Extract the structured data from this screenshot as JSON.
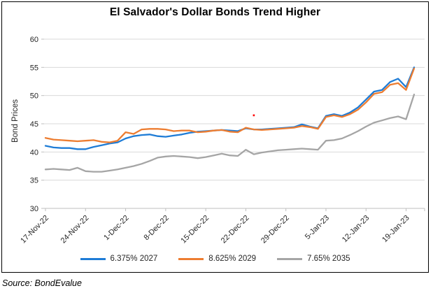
{
  "source_note": "Source: BondEvalue",
  "colors": {
    "grid": "#D9D9D9",
    "axis": "#BFBFBF",
    "tick_text": "#262626",
    "title_text": "#000000",
    "frame_border": "#000000",
    "annotation_dot": "#FF0000"
  },
  "chart_data": {
    "type": "line",
    "title": "El Salvador's Dollar Bonds Trend Higher",
    "xlabel": "",
    "ylabel": "Bond Prices",
    "ylim": [
      30,
      60
    ],
    "y_ticks": [
      30,
      35,
      40,
      45,
      50,
      55,
      60
    ],
    "x_tick_labels": [
      "17-Nov-22",
      "24-Nov-22",
      "1-Dec-22",
      "8-Dec-22",
      "15-Dec-22",
      "22-Dec-22",
      "29-Dec-22",
      "5-Jan-23",
      "12-Jan-23",
      "19-Jan-23"
    ],
    "x_tick_indices": [
      0,
      5,
      10,
      15,
      20,
      25,
      30,
      35,
      40,
      45
    ],
    "n_points": 47,
    "grid": "horizontal",
    "legend_position": "bottom",
    "series": [
      {
        "key": "bond-2027",
        "name": "6.375% 2027",
        "color": "#1E7CD6",
        "values": [
          41.1,
          40.8,
          40.7,
          40.7,
          40.5,
          40.5,
          40.9,
          41.2,
          41.5,
          41.7,
          42.4,
          42.8,
          43.0,
          43.1,
          42.8,
          42.7,
          42.9,
          43.1,
          43.4,
          43.6,
          43.7,
          43.8,
          43.9,
          43.8,
          43.7,
          44.2,
          44.0,
          44.0,
          44.1,
          44.2,
          44.3,
          44.4,
          44.9,
          44.5,
          44.2,
          46.4,
          46.7,
          46.4,
          47.0,
          47.9,
          49.3,
          50.7,
          51.0,
          52.4,
          53.0,
          51.5,
          55.0
        ]
      },
      {
        "key": "bond-2029",
        "name": "8.625% 2029",
        "color": "#ED7D31",
        "values": [
          42.5,
          42.2,
          42.1,
          42.0,
          41.9,
          42.0,
          42.1,
          41.8,
          41.7,
          42.0,
          43.5,
          43.2,
          44.0,
          44.1,
          44.1,
          44.0,
          43.7,
          43.8,
          43.8,
          43.5,
          43.6,
          43.8,
          43.9,
          43.6,
          43.5,
          44.3,
          44.0,
          43.9,
          44.0,
          44.1,
          44.2,
          44.3,
          44.6,
          44.4,
          44.1,
          46.2,
          46.5,
          46.2,
          46.7,
          47.5,
          48.8,
          50.3,
          50.6,
          51.9,
          52.2,
          51.0,
          54.8
        ]
      },
      {
        "key": "bond-2035",
        "name": "7.65% 2035",
        "color": "#A5A5A5",
        "values": [
          36.9,
          37.0,
          36.9,
          36.8,
          37.2,
          36.6,
          36.5,
          36.5,
          36.7,
          36.9,
          37.2,
          37.5,
          37.9,
          38.4,
          39.0,
          39.2,
          39.3,
          39.2,
          39.1,
          38.9,
          39.1,
          39.4,
          39.7,
          39.4,
          39.3,
          40.4,
          39.6,
          39.9,
          40.1,
          40.3,
          40.4,
          40.5,
          40.6,
          40.5,
          40.4,
          42.0,
          42.1,
          42.4,
          43.0,
          43.7,
          44.5,
          45.2,
          45.6,
          46.0,
          46.3,
          45.8,
          50.2
        ]
      }
    ],
    "annotation_point": {
      "x_index": 26,
      "value": 46.5
    }
  }
}
